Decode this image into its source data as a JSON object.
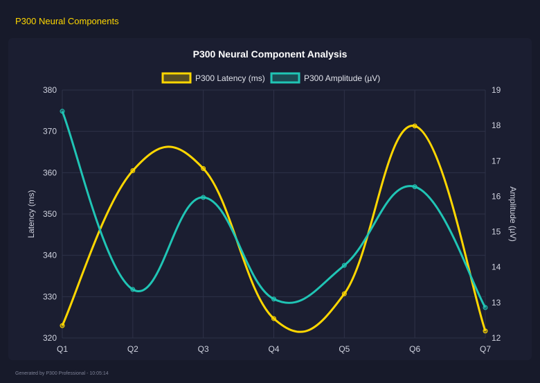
{
  "header": {
    "title": "P300 Neural Components"
  },
  "footer": {
    "text": "Generated by P300 Professional - 10:05:14"
  },
  "chart_data": {
    "type": "line",
    "title": "P300 Neural Component Analysis",
    "categories": [
      "Q1",
      "Q2",
      "Q3",
      "Q4",
      "Q5",
      "Q6",
      "Q7"
    ],
    "series": [
      {
        "name": "P300 Latency (ms)",
        "axis": "left",
        "color": "#ffd700",
        "values": [
          323.0,
          360.5,
          361.0,
          324.7,
          330.7,
          371.3,
          321.7
        ]
      },
      {
        "name": "P300 Amplitude (µV)",
        "axis": "right",
        "color": "#20c5b5",
        "values": [
          18.4,
          13.37,
          15.97,
          13.1,
          14.05,
          16.27,
          12.86
        ]
      }
    ],
    "y_left": {
      "label": "Latency (ms)",
      "range": [
        320,
        380
      ],
      "ticks": [
        320,
        330,
        340,
        350,
        360,
        370,
        380
      ]
    },
    "y_right": {
      "label": "Amplitude (µV)",
      "range": [
        12,
        19
      ],
      "ticks": [
        12,
        13,
        14,
        15,
        16,
        17,
        18,
        19
      ]
    },
    "grid": true,
    "legend_position": "top"
  }
}
